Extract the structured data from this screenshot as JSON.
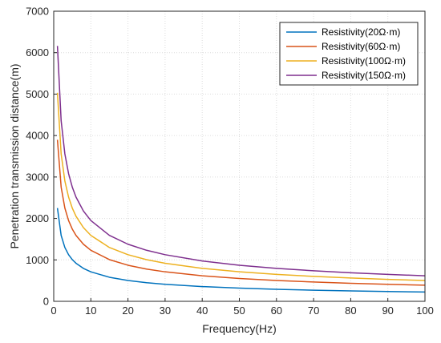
{
  "chart_data": {
    "type": "line",
    "xlabel": "Frequency(Hz)",
    "ylabel": "Penetration transmission distance(m)",
    "xlim": [
      0,
      100
    ],
    "ylim": [
      0,
      7000
    ],
    "xticks": [
      0,
      10,
      20,
      30,
      40,
      50,
      60,
      70,
      80,
      90,
      100
    ],
    "yticks": [
      0,
      1000,
      2000,
      3000,
      4000,
      5000,
      6000,
      7000
    ],
    "grid": true,
    "legend_position": "top-right",
    "x": [
      1,
      2,
      3,
      4,
      5,
      6,
      8,
      10,
      15,
      20,
      25,
      30,
      40,
      50,
      60,
      70,
      80,
      90,
      100
    ],
    "series": [
      {
        "name": "Resistivity(20Ω·m)",
        "color": "#0072bd",
        "values": [
          2250,
          1591,
          1299,
          1125,
          1006,
          919,
          795,
          712,
          581,
          503,
          450,
          411,
          356,
          318,
          290,
          269,
          252,
          237,
          225
        ]
      },
      {
        "name": "Resistivity(60Ω·m)",
        "color": "#d95319",
        "values": [
          3897,
          2756,
          2250,
          1949,
          1743,
          1591,
          1378,
          1232,
          1006,
          871,
          779,
          712,
          616,
          551,
          503,
          466,
          436,
          411,
          390
        ]
      },
      {
        "name": "Resistivity(100Ω·m)",
        "color": "#edb120",
        "values": [
          5031,
          3557,
          2905,
          2516,
          2250,
          2054,
          1779,
          1591,
          1299,
          1125,
          1006,
          919,
          795,
          712,
          650,
          601,
          563,
          530,
          503
        ]
      },
      {
        "name": "Resistivity(150Ω·m)",
        "color": "#7e2f8e",
        "values": [
          6162,
          4357,
          3558,
          3081,
          2756,
          2516,
          2179,
          1949,
          1591,
          1378,
          1232,
          1125,
          974,
          871,
          796,
          737,
          689,
          650,
          616
        ]
      }
    ]
  }
}
